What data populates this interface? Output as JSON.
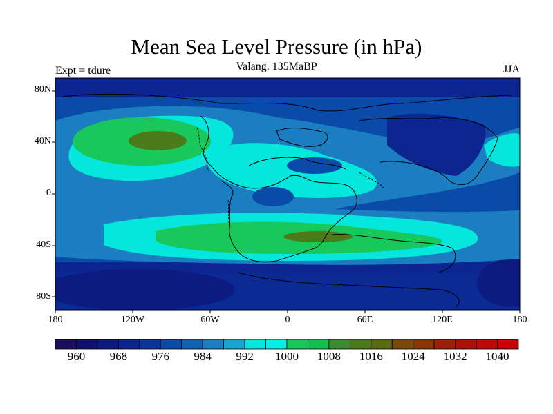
{
  "title": "Mean Sea Level Pressure (in hPa)",
  "subtitle": "Valang.  135MaBP",
  "left_label": "Expt = tdure",
  "right_label": "JJA",
  "lat_ticks": [
    "80N",
    "40N",
    "0",
    "40S",
    "80S"
  ],
  "lon_ticks": [
    "180",
    "120W",
    "60W",
    "0",
    "60E",
    "120E",
    "180"
  ],
  "colorbar": {
    "labels": [
      "960",
      "968",
      "976",
      "984",
      "992",
      "1000",
      "1008",
      "1016",
      "1024",
      "1032",
      "1040"
    ],
    "colors": [
      "#1c0f5e",
      "#0e1170",
      "#0d1a80",
      "#0c2590",
      "#0b349c",
      "#0a4aa8",
      "#1062b4",
      "#1a7ec0",
      "#17a6d2",
      "#05e6dc",
      "#00f0e6",
      "#18c85a",
      "#12c050",
      "#3a8c30",
      "#4c7a1a",
      "#5a6a10",
      "#7a4a0a",
      "#8a3606",
      "#9e2006",
      "#b01008",
      "#c00808",
      "#cc0008"
    ]
  },
  "colors": {
    "deep": "#0c2590",
    "mid": "#0a4aa8",
    "light": "#1a7ec0",
    "cyan": "#05e6dc",
    "green": "#18c85a",
    "olive": "#4c7a1a",
    "brown": "#7a4a0a"
  }
}
